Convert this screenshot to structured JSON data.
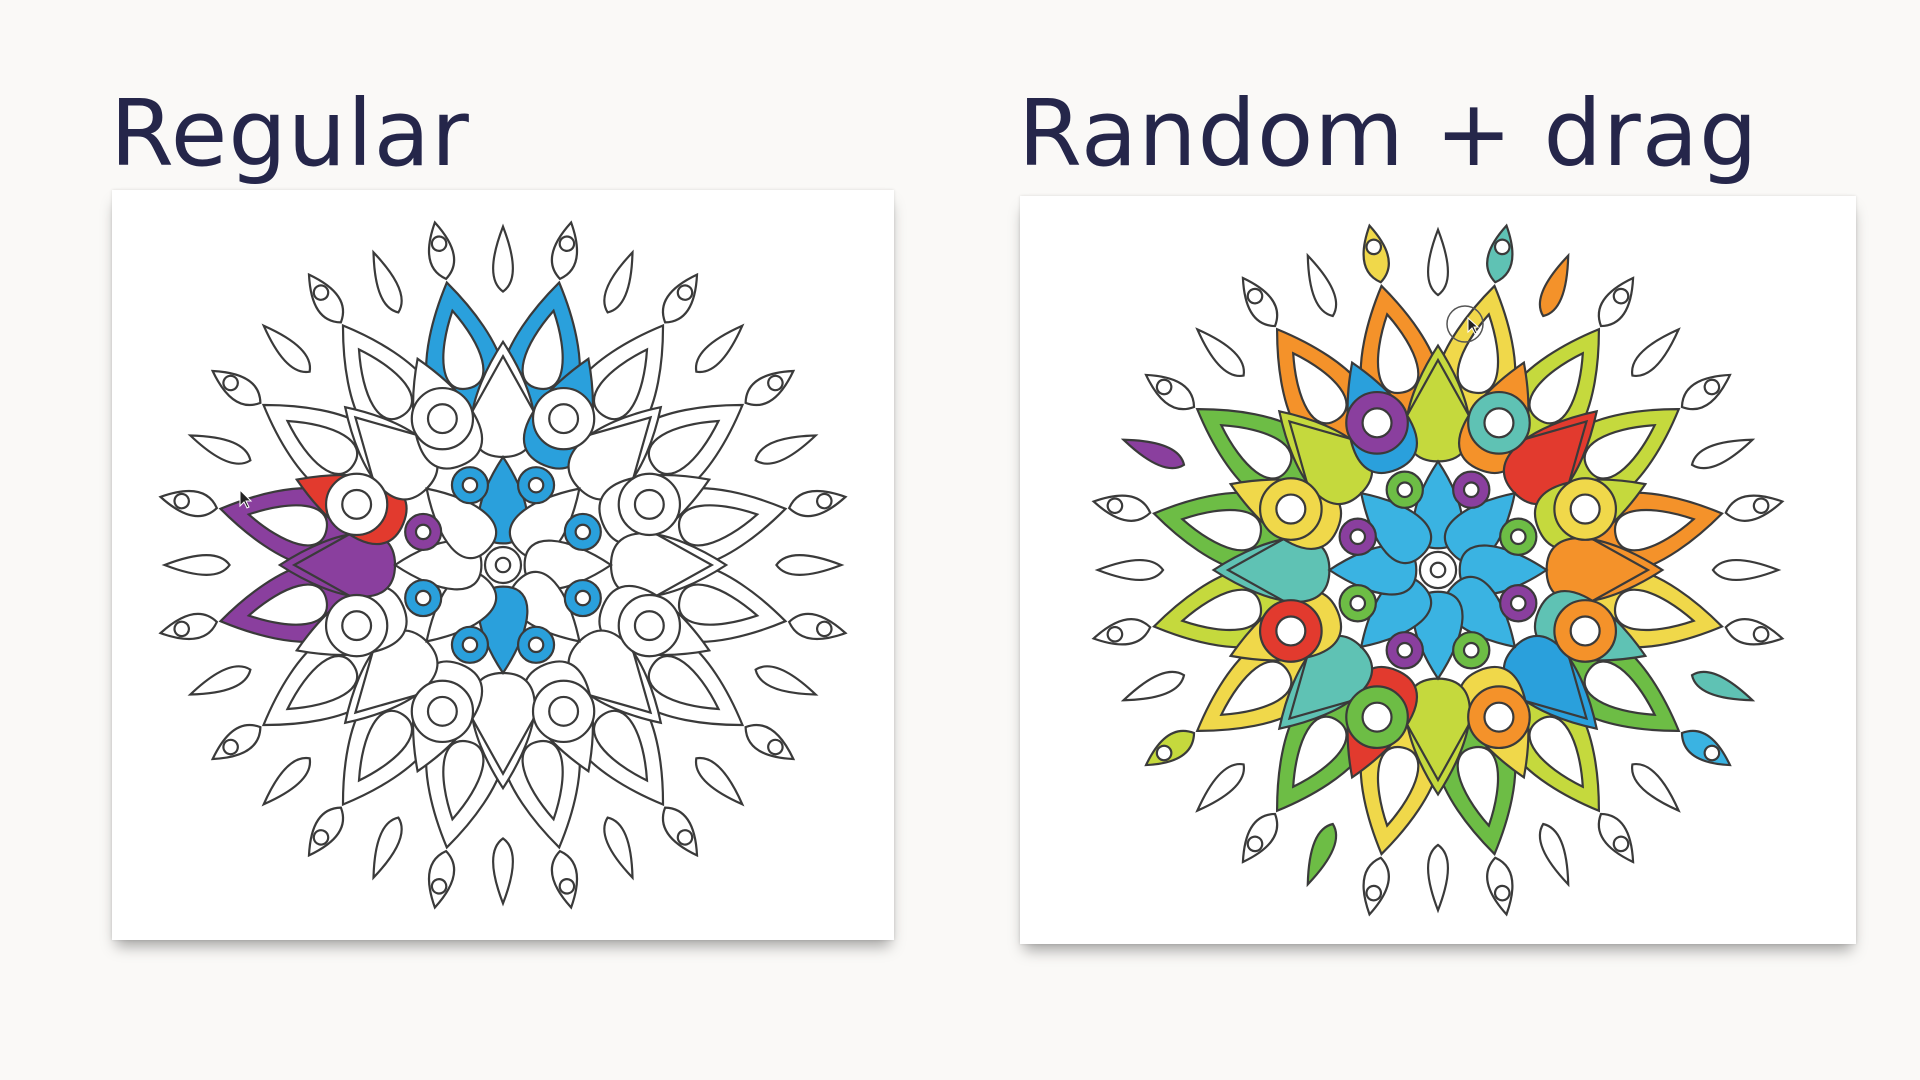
{
  "titles": {
    "left": "Regular",
    "right": "Random + drag"
  },
  "colors": {
    "outline": "#3a3a3a",
    "background": "#faf9f7",
    "title": "#25264a",
    "blue": "#2aa0dc",
    "purple": "#8a3f9e",
    "red": "#e23a2e",
    "green": "#6dbd45",
    "lime": "#c5d93d",
    "yellow": "#f0d84a",
    "orange": "#f4922a",
    "teal": "#5fc2b4",
    "cyan": "#3ab3e2"
  },
  "panels": [
    {
      "name": "regular",
      "fill_mode": "regular",
      "icon": "arrow-cursor-icon"
    },
    {
      "name": "random-drag",
      "fill_mode": "random",
      "icon": "drag-cursor-icon"
    }
  ]
}
